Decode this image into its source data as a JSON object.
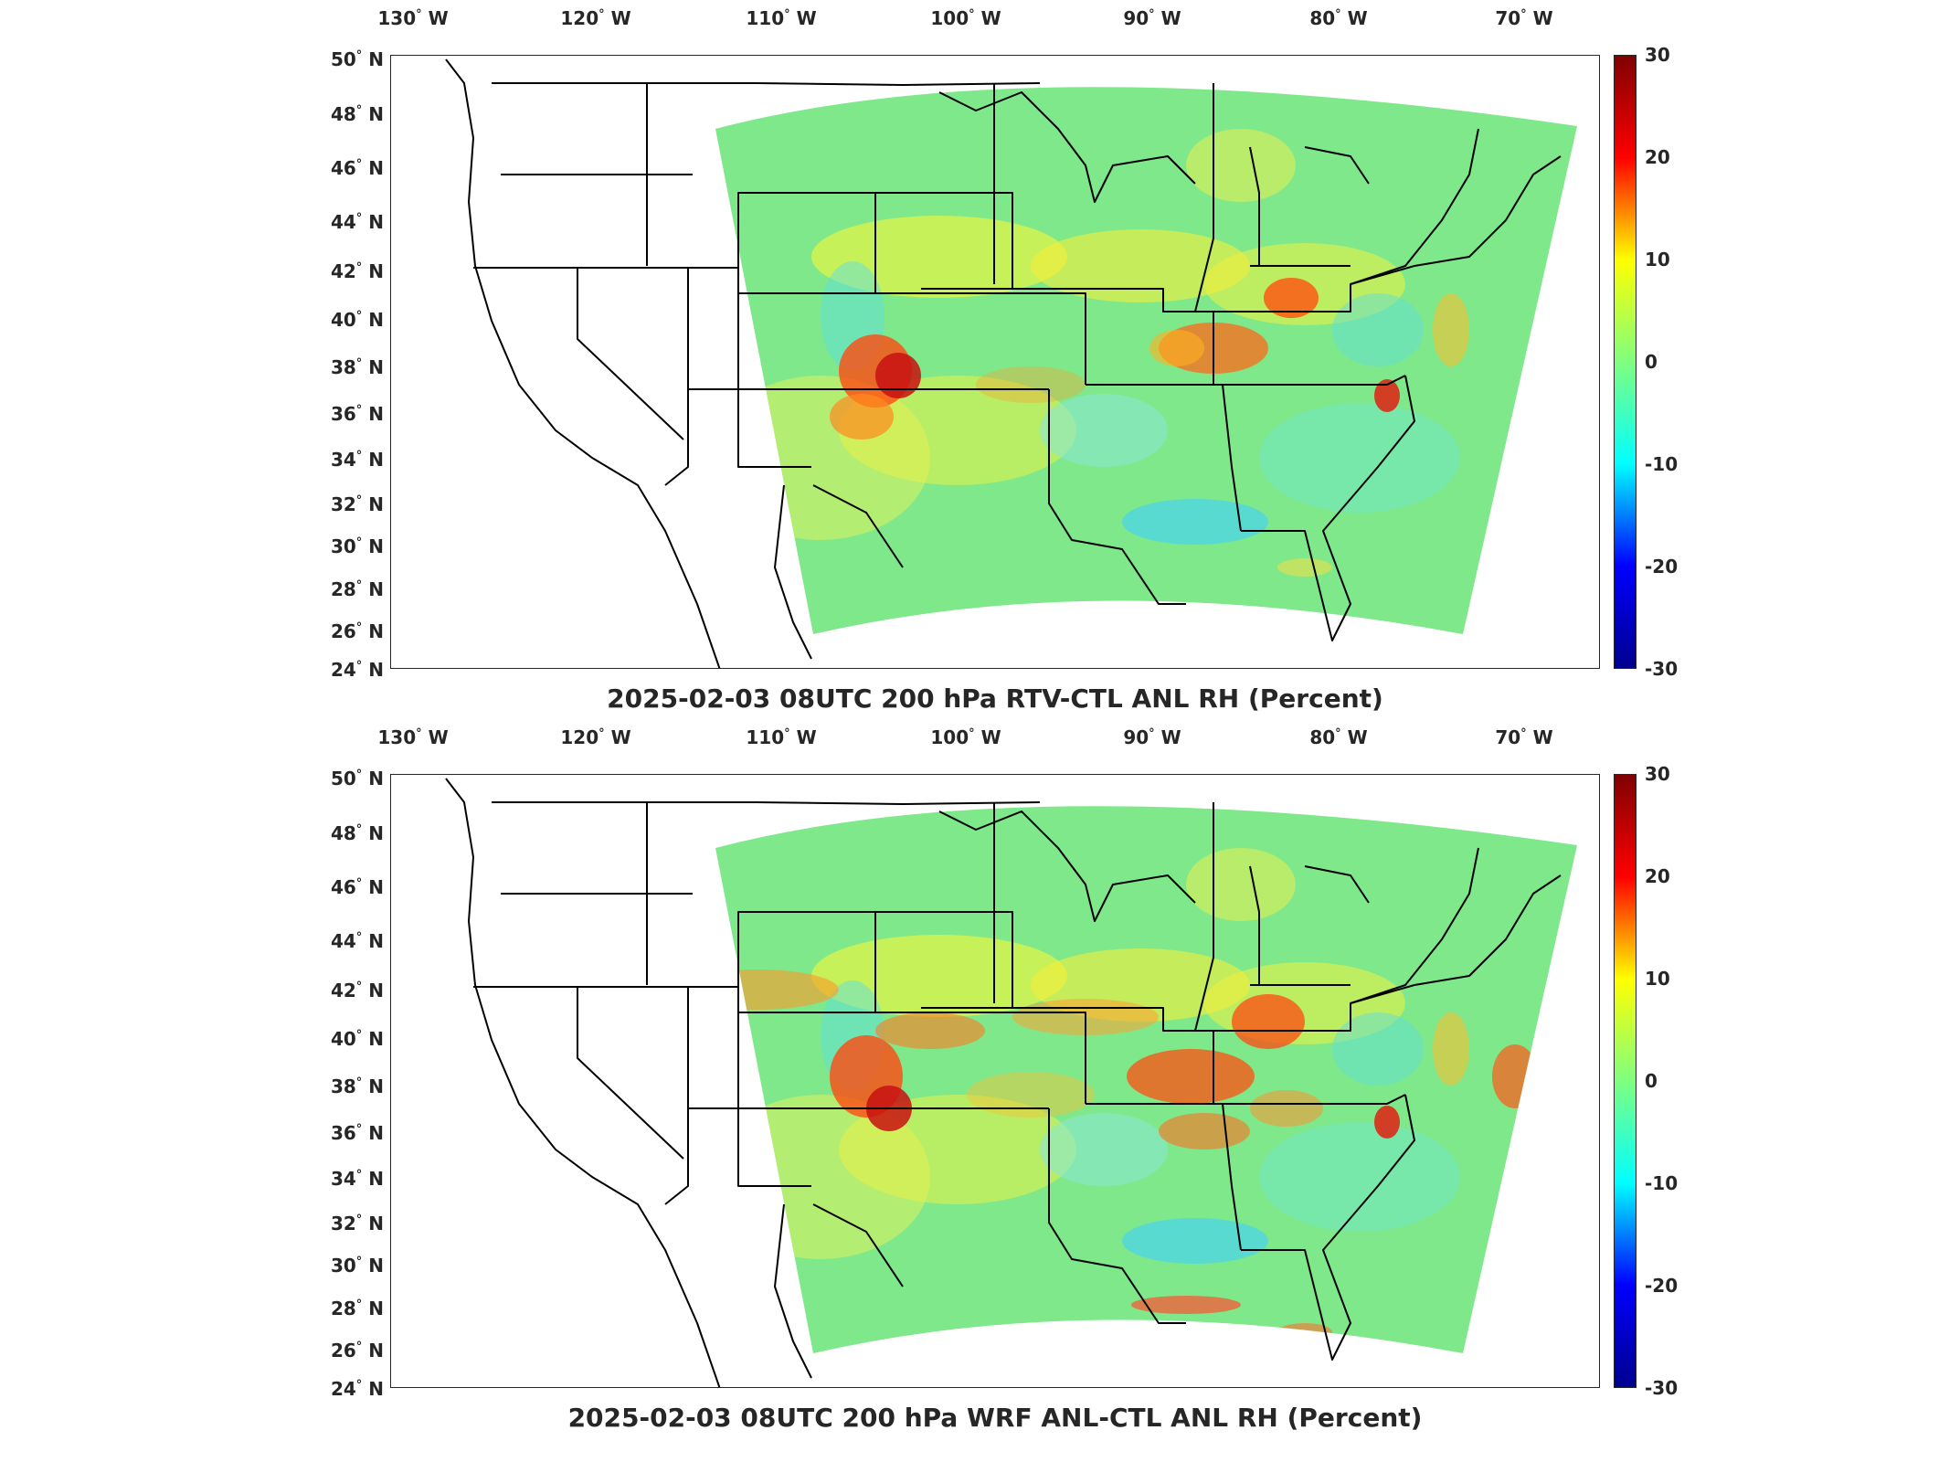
{
  "lon_labels": [
    "130",
    "120",
    "110",
    "100",
    "90",
    "80",
    "70"
  ],
  "lat_labels": [
    "50",
    "48",
    "46",
    "44",
    "42",
    "40",
    "38",
    "36",
    "34",
    "32",
    "30",
    "28",
    "26",
    "24"
  ],
  "lon_suffix": "W",
  "lat_suffix": "N",
  "colorbar": {
    "ticks": [
      "30",
      "20",
      "10",
      "0",
      "-10",
      "-20",
      "-30"
    ],
    "min": -30,
    "max": 30,
    "colormap": "jet",
    "colors": [
      "#00008f",
      "#0000ff",
      "#00ffff",
      "#7fff7f",
      "#ffff00",
      "#ff0000",
      "#800000"
    ]
  },
  "panels": [
    {
      "title": "2025-02-03 08UTC 200 hPa RTV-CTL ANL RH (Percent)"
    },
    {
      "title": "2025-02-03 08UTC 200 hPa WRF ANL-CTL ANL RH (Percent)"
    }
  ],
  "colors": {
    "background_field": "#7ee88a",
    "state_lines": "#000000"
  }
}
